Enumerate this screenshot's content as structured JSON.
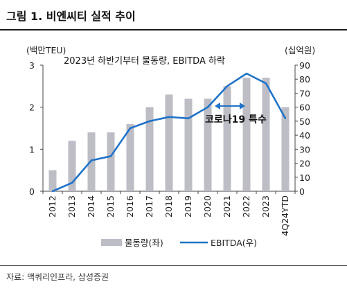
{
  "figure": {
    "title": "그림 1. 비엔씨티 실적 추이",
    "source": "자료: 맥쿼리인프라, 삼성증권"
  },
  "chart_data": {
    "type": "bar",
    "categories": [
      "2012",
      "2013",
      "2014",
      "2015",
      "2016",
      "2017",
      "2018",
      "2019",
      "2020",
      "2021",
      "2022",
      "2023",
      "4Q24YTD"
    ],
    "series": [
      {
        "name": "물동량(좌)",
        "kind": "bar",
        "axis": "left",
        "color": "#bdbdc6",
        "values": [
          0.5,
          1.2,
          1.4,
          1.4,
          1.6,
          2.0,
          2.3,
          2.2,
          2.2,
          2.5,
          2.7,
          2.7,
          2.0
        ]
      },
      {
        "name": "EBITDA(우)",
        "kind": "line",
        "axis": "right",
        "color": "#1f73c8",
        "values": [
          0,
          6,
          22,
          25,
          45,
          50,
          53,
          52,
          60,
          75,
          84,
          77,
          52
        ]
      }
    ],
    "y_left": {
      "label": "(백만TEU)",
      "min": 0,
      "max": 3,
      "ticks": [
        0,
        1,
        2,
        3
      ]
    },
    "y_right": {
      "label": "(십억원)",
      "min": 0,
      "max": 90,
      "ticks": [
        0,
        10,
        20,
        30,
        40,
        50,
        60,
        70,
        80,
        90
      ]
    },
    "grid": false,
    "legend_position": "bottom",
    "annotations": {
      "headline": "2023년 하반기부터 물동량, EBITDA 하락",
      "covid_label": "코로나19 특수",
      "covid_arrow_from": "2020",
      "covid_arrow_to": "2022"
    }
  }
}
